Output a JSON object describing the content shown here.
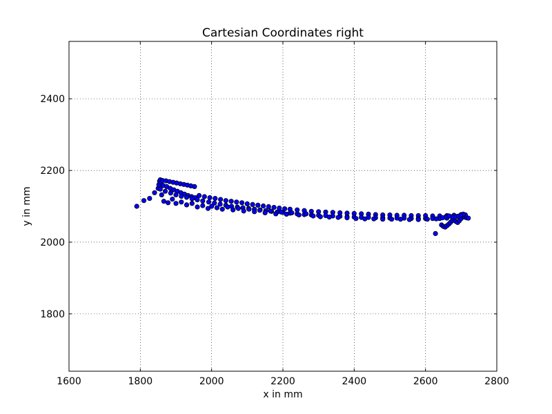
{
  "chart_data": {
    "type": "scatter",
    "title": "Cartesian Coordinates right",
    "xlabel": "x in mm",
    "ylabel": "y in mm",
    "xlim": [
      1600,
      2800
    ],
    "ylim": [
      1640,
      2560
    ],
    "xticks": [
      1600,
      1800,
      2000,
      2200,
      2400,
      2600,
      2800
    ],
    "yticks": [
      1800,
      2000,
      2200,
      2400
    ],
    "grid": true,
    "marker_color": "#0000ff",
    "marker_edge_color": "#000000",
    "series": [
      {
        "points": [
          [
            1790,
            2100
          ],
          [
            1810,
            2116
          ],
          [
            1826,
            2122
          ],
          [
            1840,
            2138
          ],
          [
            1850,
            2150
          ],
          [
            1852,
            2160
          ],
          [
            1854,
            2170
          ],
          [
            1856,
            2174
          ],
          [
            1858,
            2166
          ],
          [
            1856,
            2148
          ],
          [
            1860,
            2132
          ],
          [
            1866,
            2114
          ],
          [
            1878,
            2110
          ],
          [
            1890,
            2120
          ],
          [
            1900,
            2108
          ],
          [
            1915,
            2112
          ],
          [
            1930,
            2104
          ],
          [
            1945,
            2108
          ],
          [
            1960,
            2098
          ],
          [
            1975,
            2102
          ],
          [
            1990,
            2094
          ],
          [
            1862,
            2172
          ],
          [
            1872,
            2171
          ],
          [
            1882,
            2169
          ],
          [
            1892,
            2167
          ],
          [
            1902,
            2165
          ],
          [
            1912,
            2163
          ],
          [
            1922,
            2161
          ],
          [
            1932,
            2159
          ],
          [
            1942,
            2157
          ],
          [
            1952,
            2155
          ],
          [
            1864,
            2158
          ],
          [
            1874,
            2155
          ],
          [
            1884,
            2150
          ],
          [
            1894,
            2146
          ],
          [
            1904,
            2142
          ],
          [
            1914,
            2138
          ],
          [
            1924,
            2134
          ],
          [
            1934,
            2130
          ],
          [
            1944,
            2127
          ],
          [
            1954,
            2124
          ],
          [
            1870,
            2142
          ],
          [
            1885,
            2137
          ],
          [
            1900,
            2132
          ],
          [
            1915,
            2128
          ],
          [
            1930,
            2125
          ],
          [
            1945,
            2121
          ],
          [
            1960,
            2118
          ],
          [
            1965,
            2130
          ],
          [
            1980,
            2127
          ],
          [
            1995,
            2124
          ],
          [
            2010,
            2122
          ],
          [
            2025,
            2119
          ],
          [
            2040,
            2116
          ],
          [
            2055,
            2114
          ],
          [
            2070,
            2112
          ],
          [
            2085,
            2110
          ],
          [
            2100,
            2107
          ],
          [
            2115,
            2105
          ],
          [
            2130,
            2103
          ],
          [
            2145,
            2101
          ],
          [
            2160,
            2099
          ],
          [
            2175,
            2097
          ],
          [
            2190,
            2095
          ],
          [
            2205,
            2093
          ],
          [
            2220,
            2092
          ],
          [
            2240,
            2090
          ],
          [
            2260,
            2088
          ],
          [
            2280,
            2086
          ],
          [
            2300,
            2085
          ],
          [
            2320,
            2084
          ],
          [
            2340,
            2083
          ],
          [
            2360,
            2082
          ],
          [
            2380,
            2081
          ],
          [
            2400,
            2080
          ],
          [
            2420,
            2079
          ],
          [
            2440,
            2078
          ],
          [
            2460,
            2077
          ],
          [
            2480,
            2076
          ],
          [
            2500,
            2076
          ],
          [
            2520,
            2075
          ],
          [
            2540,
            2075
          ],
          [
            2560,
            2074
          ],
          [
            2580,
            2074
          ],
          [
            2600,
            2074
          ],
          [
            2620,
            2073
          ],
          [
            2640,
            2073
          ],
          [
            2660,
            2074
          ],
          [
            2680,
            2075
          ],
          [
            2700,
            2077
          ],
          [
            1975,
            2115
          ],
          [
            1992,
            2112
          ],
          [
            2008,
            2109
          ],
          [
            2024,
            2106
          ],
          [
            2040,
            2103
          ],
          [
            2056,
            2100
          ],
          [
            2072,
            2098
          ],
          [
            2088,
            2096
          ],
          [
            2104,
            2094
          ],
          [
            2120,
            2092
          ],
          [
            2136,
            2090
          ],
          [
            2152,
            2088
          ],
          [
            2168,
            2086
          ],
          [
            2184,
            2084
          ],
          [
            2200,
            2083
          ],
          [
            2220,
            2081
          ],
          [
            2240,
            2079
          ],
          [
            2260,
            2077
          ],
          [
            2280,
            2076
          ],
          [
            2300,
            2075
          ],
          [
            2320,
            2074
          ],
          [
            2340,
            2073
          ],
          [
            2360,
            2072
          ],
          [
            2380,
            2071
          ],
          [
            2400,
            2070
          ],
          [
            2420,
            2069
          ],
          [
            2440,
            2069
          ],
          [
            2460,
            2068
          ],
          [
            2480,
            2068
          ],
          [
            2500,
            2067
          ],
          [
            2520,
            2067
          ],
          [
            2540,
            2067
          ],
          [
            2560,
            2066
          ],
          [
            2580,
            2066
          ],
          [
            2600,
            2066
          ],
          [
            2620,
            2066
          ],
          [
            2640,
            2066
          ],
          [
            2660,
            2067
          ],
          [
            2000,
            2100
          ],
          [
            2015,
            2096
          ],
          [
            2030,
            2092
          ],
          [
            2045,
            2098
          ],
          [
            2060,
            2090
          ],
          [
            2075,
            2094
          ],
          [
            2090,
            2087
          ],
          [
            2105,
            2092
          ],
          [
            2120,
            2085
          ],
          [
            2135,
            2089
          ],
          [
            2150,
            2082
          ],
          [
            2165,
            2087
          ],
          [
            2180,
            2079
          ],
          [
            2195,
            2084
          ],
          [
            2210,
            2078
          ],
          [
            2225,
            2082
          ],
          [
            2245,
            2076
          ],
          [
            2265,
            2079
          ],
          [
            2285,
            2073
          ],
          [
            2305,
            2071
          ],
          [
            2330,
            2070
          ],
          [
            2355,
            2069
          ],
          [
            2380,
            2068
          ],
          [
            2405,
            2066
          ],
          [
            2430,
            2065
          ],
          [
            2455,
            2065
          ],
          [
            2480,
            2064
          ],
          [
            2505,
            2064
          ],
          [
            2530,
            2064
          ],
          [
            2555,
            2063
          ],
          [
            2580,
            2063
          ],
          [
            2605,
            2064
          ],
          [
            2630,
            2065
          ],
          [
            2628,
            2024
          ],
          [
            2645,
            2048
          ],
          [
            2650,
            2044
          ],
          [
            2655,
            2042
          ],
          [
            2660,
            2046
          ],
          [
            2665,
            2050
          ],
          [
            2670,
            2055
          ],
          [
            2675,
            2060
          ],
          [
            2680,
            2064
          ],
          [
            2685,
            2058
          ],
          [
            2690,
            2055
          ],
          [
            2695,
            2060
          ],
          [
            2700,
            2066
          ],
          [
            2705,
            2072
          ],
          [
            2710,
            2070
          ],
          [
            2715,
            2068
          ],
          [
            2720,
            2067
          ],
          [
            2712,
            2076
          ],
          [
            2706,
            2078
          ],
          [
            2698,
            2075
          ],
          [
            2690,
            2072
          ],
          [
            2682,
            2070
          ],
          [
            2674,
            2071
          ],
          [
            2666,
            2073
          ],
          [
            2656,
            2070
          ],
          [
            2648,
            2068
          ]
        ]
      }
    ]
  }
}
